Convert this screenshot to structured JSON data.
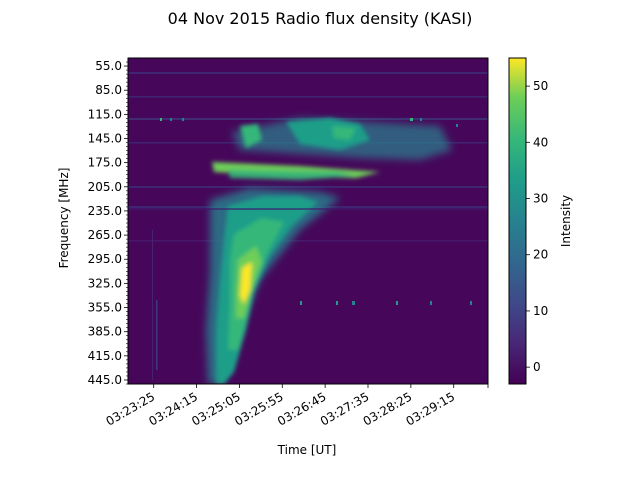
{
  "chart_data": {
    "type": "heatmap",
    "title": "04 Nov 2015 Radio flux density (KASI)",
    "xlabel": "Time [UT]",
    "ylabel": "Frequency [MHz]",
    "x_ticks": [
      "03:23:25",
      "03:24:15",
      "03:25:05",
      "03:25:55",
      "03:26:45",
      "03:27:35",
      "03:28:25",
      "03:29:15"
    ],
    "y_ticks": [
      "55.0",
      "85.0",
      "115.0",
      "145.0",
      "175.0",
      "205.0",
      "235.0",
      "265.0",
      "295.0",
      "325.0",
      "355.0",
      "385.0",
      "415.0",
      "445.0"
    ],
    "x_range": [
      "03:22:55",
      "03:29:55"
    ],
    "y_range": [
      45,
      450
    ],
    "colorbar": {
      "label": "Intensity",
      "ticks": [
        0,
        10,
        20,
        30,
        40,
        50
      ],
      "range": [
        -3,
        55
      ],
      "colormap": "viridis"
    }
  }
}
